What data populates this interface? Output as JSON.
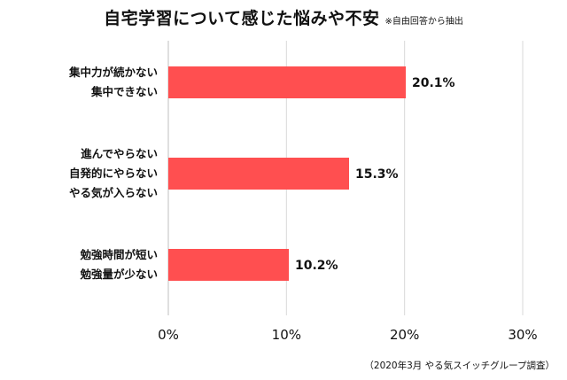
{
  "title": "自宅学習について感じた悩みや不安",
  "note": "※自由回答から抽出",
  "source": "（2020年3月 やる気スイッチグループ調査）",
  "chart_data": {
    "type": "bar",
    "orientation": "horizontal",
    "categories": [
      [
        "集中力が続かない",
        "集中できない"
      ],
      [
        "進んでやらない",
        "自発的にやらない",
        "やる気が入らない"
      ],
      [
        "勉強時間が短い",
        "勉強量が少ない"
      ]
    ],
    "values": [
      20.1,
      15.3,
      10.2
    ],
    "value_labels": [
      "20.1%",
      "15.3%",
      "10.2%"
    ],
    "xticks": [
      "0%",
      "10%",
      "20%",
      "30%"
    ],
    "xlim": [
      0,
      30
    ],
    "grid": true,
    "bar_color": "#ff4f50",
    "grid_color": "#d9d9d9"
  }
}
